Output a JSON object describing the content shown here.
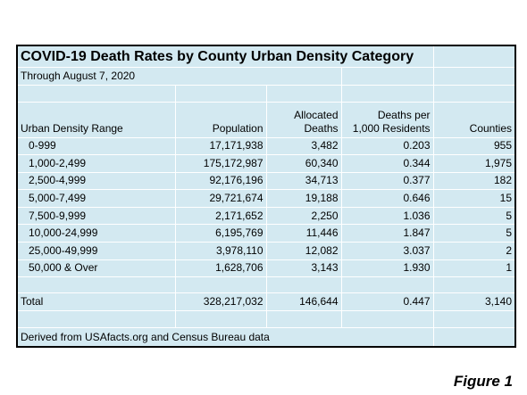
{
  "table": {
    "title": "COVID-19 Death Rates by County Urban Density Category",
    "subtitle": "Through August 7, 2020",
    "headers": [
      [
        "Urban Density Range"
      ],
      [
        "Population"
      ],
      [
        "Allocated",
        "Deaths"
      ],
      [
        "Deaths per",
        "1,000 Residents"
      ],
      [
        "Counties"
      ]
    ],
    "rows": [
      [
        "0-999",
        "17,171,938",
        "3,482",
        "0.203",
        "955"
      ],
      [
        "1,000-2,499",
        "175,172,987",
        "60,340",
        "0.344",
        "1,975"
      ],
      [
        "2,500-4,999",
        "92,176,196",
        "34,713",
        "0.377",
        "182"
      ],
      [
        "5,000-7,499",
        "29,721,674",
        "19,188",
        "0.646",
        "15"
      ],
      [
        "7,500-9,999",
        "2,171,652",
        "2,250",
        "1.036",
        "5"
      ],
      [
        "10,000-24,999",
        "6,195,769",
        "11,446",
        "1.847",
        "5"
      ],
      [
        "25,000-49,999",
        "3,978,110",
        "12,082",
        "3.037",
        "2"
      ],
      [
        "50,000 & Over",
        "1,628,706",
        "3,143",
        "1.930",
        "1"
      ]
    ],
    "total": [
      "Total",
      "328,217,032",
      "146,644",
      "0.447",
      "3,140"
    ],
    "source": "Derived from USAfacts.org and Census Bureau data"
  },
  "figure_label": "Figure 1"
}
